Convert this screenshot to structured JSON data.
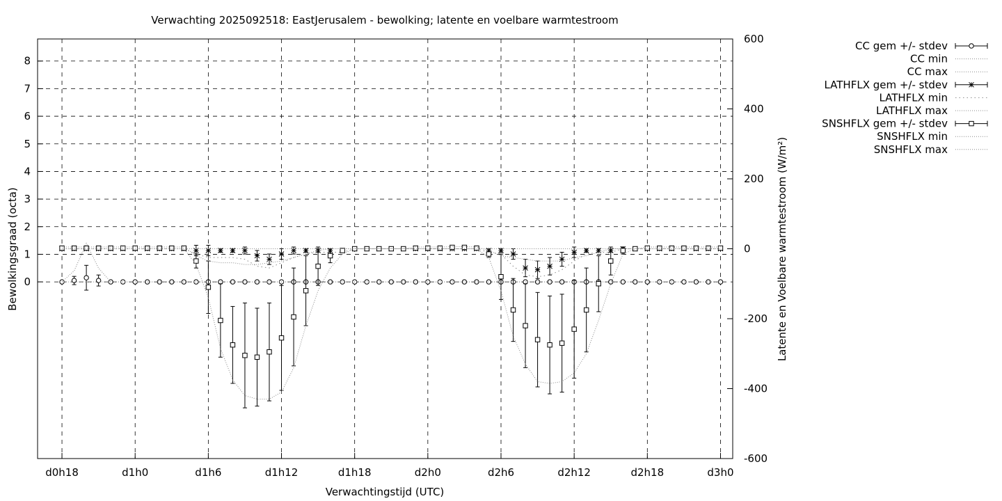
{
  "chart_data": {
    "type": "line",
    "title": "Verwachting 2025092518: EastJerusalem - bewolking; latente en voelbare warmtestroom",
    "xlabel": "Verwachtingstijd (UTC)",
    "ylabel": "Bewolkingsgraad (octa)",
    "y2label": "Latente en Voelbare warmtestroom (W/m²)",
    "x_unit": "forecast hour",
    "xlim": [
      -2,
      55
    ],
    "ylim": [
      -6.4,
      8.8
    ],
    "y2lim": [
      -600,
      600
    ],
    "grid": true,
    "legend_position": "outside-right",
    "x_ticks": [
      {
        "x": 0,
        "label": "d0h18"
      },
      {
        "x": 6,
        "label": "d1h0"
      },
      {
        "x": 12,
        "label": "d1h6"
      },
      {
        "x": 18,
        "label": "d1h12"
      },
      {
        "x": 24,
        "label": "d1h18"
      },
      {
        "x": 30,
        "label": "d2h0"
      },
      {
        "x": 36,
        "label": "d2h6"
      },
      {
        "x": 42,
        "label": "d2h12"
      },
      {
        "x": 48,
        "label": "d2h18"
      },
      {
        "x": 54,
        "label": "d3h0"
      }
    ],
    "y_ticks": [
      "0",
      "1",
      "2",
      "3",
      "4",
      "5",
      "6",
      "7",
      "8"
    ],
    "y2_ticks": [
      "-600",
      "-400",
      "-200",
      "0",
      "200",
      "400",
      "600"
    ],
    "x": [
      0,
      1,
      2,
      3,
      4,
      5,
      6,
      7,
      8,
      9,
      10,
      11,
      12,
      13,
      14,
      15,
      16,
      17,
      18,
      19,
      20,
      21,
      22,
      23,
      24,
      25,
      26,
      27,
      28,
      29,
      30,
      31,
      32,
      33,
      34,
      35,
      36,
      37,
      38,
      39,
      40,
      41,
      42,
      43,
      44,
      45,
      46,
      47,
      48,
      49,
      50,
      51,
      52,
      53,
      54
    ],
    "series": [
      {
        "name": "CC gem +/- stdev",
        "axis": "y",
        "marker": "circle",
        "values": [
          0,
          0.05,
          0.15,
          0.05,
          0,
          0,
          0,
          0,
          0,
          0,
          0,
          0,
          0,
          0,
          0,
          0,
          0,
          0,
          0,
          0,
          0,
          0,
          0,
          0,
          0,
          0,
          0,
          0,
          0,
          0,
          0,
          0,
          0,
          0,
          0,
          0,
          0,
          0,
          0,
          0,
          0,
          0,
          0,
          0,
          0,
          0,
          0,
          0,
          0,
          0,
          0,
          0,
          0,
          0,
          0
        ],
        "stdev": [
          0,
          0.15,
          0.45,
          0.2,
          0,
          0,
          0,
          0,
          0,
          0,
          0,
          0,
          0,
          0,
          0,
          0,
          0,
          0,
          0,
          0,
          0,
          0,
          0,
          0,
          0,
          0,
          0,
          0,
          0,
          0,
          0,
          0,
          0,
          0,
          0,
          0,
          0,
          0,
          0,
          0,
          0,
          0,
          0,
          0,
          0,
          0,
          0,
          0,
          0,
          0,
          0,
          0,
          0,
          0,
          0
        ]
      },
      {
        "name": "CC min",
        "axis": "y",
        "values": [
          0,
          0,
          0,
          0,
          0,
          0,
          0,
          0,
          0,
          0,
          0,
          0,
          0,
          0,
          0,
          0,
          0,
          0,
          0,
          0,
          0,
          0,
          0,
          0,
          0,
          0,
          0,
          0,
          0,
          0,
          0,
          0,
          0,
          0,
          0,
          0,
          0,
          0,
          0,
          0,
          0,
          0,
          0,
          0,
          0,
          0,
          0,
          0,
          0,
          0,
          0,
          0,
          0,
          0,
          0
        ]
      },
      {
        "name": "CC max",
        "axis": "y",
        "values": [
          0,
          0.4,
          1.4,
          0.5,
          0,
          0,
          0,
          0,
          0,
          0,
          0,
          0,
          0,
          0,
          0,
          0,
          0,
          0,
          0,
          0,
          0,
          0,
          0,
          0,
          0,
          0,
          0,
          0,
          0,
          0,
          0,
          0,
          0,
          0,
          0,
          0,
          0,
          0,
          0,
          0,
          0,
          0,
          0,
          0,
          0,
          0,
          0,
          0,
          0,
          0,
          0,
          0,
          0,
          0,
          0
        ]
      },
      {
        "name": "LATHFLX gem +/- stdev",
        "axis": "y2",
        "marker": "star",
        "values": [
          0,
          0,
          0,
          0,
          0,
          0,
          0,
          0,
          0,
          0,
          0,
          -5,
          -5,
          -5,
          -5,
          -5,
          -20,
          -30,
          -15,
          -5,
          -5,
          -5,
          -5,
          -5,
          0,
          0,
          0,
          0,
          0,
          0,
          0,
          0,
          0,
          0,
          0,
          -5,
          -5,
          -15,
          -55,
          -60,
          -50,
          -30,
          -10,
          -5,
          -5,
          -5,
          0,
          0,
          0,
          0,
          0,
          0,
          0,
          0,
          0
        ],
        "stdev": [
          0,
          0,
          0,
          0,
          0,
          0,
          0,
          0,
          0,
          0,
          0,
          15,
          15,
          5,
          5,
          10,
          15,
          15,
          15,
          10,
          5,
          5,
          5,
          5,
          0,
          0,
          0,
          0,
          0,
          0,
          0,
          0,
          0,
          0,
          0,
          5,
          5,
          15,
          25,
          25,
          25,
          20,
          15,
          5,
          5,
          5,
          0,
          0,
          0,
          0,
          0,
          0,
          0,
          0,
          0
        ]
      },
      {
        "name": "LATHFLX min",
        "axis": "y2",
        "values": [
          0,
          0,
          0,
          0,
          0,
          0,
          0,
          0,
          0,
          0,
          0,
          -15,
          -25,
          -25,
          -25,
          -30,
          -50,
          -55,
          -40,
          -25,
          -15,
          -10,
          -10,
          -10,
          0,
          0,
          0,
          0,
          0,
          0,
          0,
          0,
          0,
          0,
          0,
          -10,
          -15,
          -50,
          -75,
          -80,
          -75,
          -60,
          -35,
          -15,
          -10,
          -10,
          0,
          0,
          0,
          0,
          0,
          0,
          0,
          0,
          0
        ]
      },
      {
        "name": "LATHFLX max",
        "axis": "y2",
        "values": [
          0,
          0,
          0,
          0,
          0,
          0,
          0,
          0,
          0,
          0,
          0,
          0,
          0,
          0,
          0,
          0,
          0,
          0,
          0,
          0,
          0,
          0,
          0,
          0,
          0,
          0,
          0,
          0,
          0,
          0,
          0,
          0,
          0,
          0,
          0,
          0,
          0,
          0,
          0,
          0,
          0,
          0,
          0,
          0,
          0,
          0,
          0,
          0,
          0,
          0,
          0,
          0,
          0,
          0,
          0
        ]
      },
      {
        "name": "SNSHFLX gem +/- stdev",
        "axis": "y2",
        "marker": "square",
        "values": [
          2,
          2,
          2,
          2,
          2,
          2,
          2,
          2,
          2,
          2,
          2,
          -35,
          -110,
          -205,
          -275,
          -305,
          -310,
          -295,
          -255,
          -195,
          -120,
          -50,
          -20,
          -5,
          0,
          0,
          0,
          0,
          0,
          2,
          2,
          2,
          4,
          4,
          2,
          -15,
          -80,
          -175,
          -220,
          -260,
          -275,
          -270,
          -230,
          -175,
          -100,
          -35,
          -5,
          0,
          2,
          2,
          2,
          2,
          2,
          2,
          2
        ],
        "stdev": [
          0,
          0,
          0,
          0,
          0,
          0,
          0,
          0,
          0,
          0,
          0,
          20,
          75,
          105,
          110,
          150,
          140,
          140,
          150,
          140,
          100,
          55,
          20,
          0,
          0,
          0,
          0,
          0,
          0,
          0,
          0,
          0,
          0,
          0,
          0,
          10,
          65,
          90,
          120,
          135,
          140,
          140,
          140,
          120,
          80,
          40,
          10,
          0,
          0,
          0,
          0,
          0,
          0,
          0,
          0
        ]
      },
      {
        "name": "SNSHFLX min",
        "axis": "y2",
        "values": [
          0,
          0,
          0,
          0,
          0,
          0,
          0,
          0,
          0,
          0,
          0,
          -45,
          -140,
          -285,
          -375,
          -420,
          -430,
          -430,
          -410,
          -340,
          -220,
          -120,
          -55,
          -15,
          0,
          0,
          0,
          0,
          0,
          0,
          0,
          0,
          0,
          0,
          0,
          -25,
          -120,
          -250,
          -330,
          -380,
          -385,
          -380,
          -355,
          -300,
          -205,
          -100,
          -15,
          0,
          0,
          0,
          0,
          0,
          0,
          0,
          0
        ]
      },
      {
        "name": "SNSHFLX max",
        "axis": "y2",
        "values": [
          5,
          5,
          5,
          5,
          5,
          5,
          5,
          5,
          5,
          5,
          5,
          -20,
          -35,
          -40,
          -40,
          -45,
          -45,
          -40,
          -35,
          -25,
          -15,
          -5,
          0,
          0,
          0,
          0,
          0,
          0,
          0,
          5,
          5,
          5,
          6,
          6,
          5,
          -5,
          -20,
          -25,
          -30,
          -35,
          -35,
          -35,
          -25,
          -20,
          -10,
          0,
          0,
          0,
          5,
          5,
          5,
          5,
          5,
          5,
          5
        ]
      }
    ],
    "legend": [
      {
        "label": "CC gem +/- stdev",
        "style": "errorbar",
        "marker": "circle"
      },
      {
        "label": "CC min",
        "style": "dotted"
      },
      {
        "label": "CC max",
        "style": "dotted"
      },
      {
        "label": "LATHFLX gem +/- stdev",
        "style": "errorbar",
        "marker": "star"
      },
      {
        "label": "LATHFLX min",
        "style": "dotted-sparse"
      },
      {
        "label": "LATHFLX max",
        "style": "dotted"
      },
      {
        "label": "SNSHFLX gem +/- stdev",
        "style": "errorbar",
        "marker": "square"
      },
      {
        "label": "SNSHFLX min",
        "style": "dotted"
      },
      {
        "label": "SNSHFLX max",
        "style": "dotted"
      }
    ]
  }
}
